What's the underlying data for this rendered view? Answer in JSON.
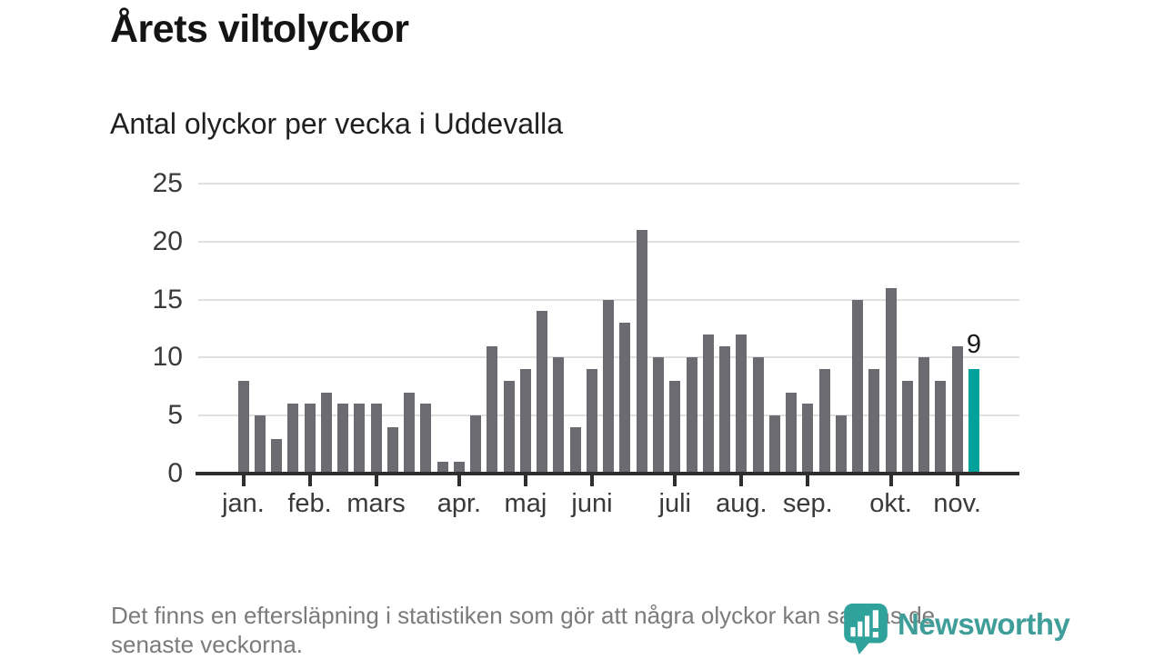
{
  "header": {
    "title": "Årets viltolyckor",
    "subtitle": "Antal olyckor per vecka i Uddevalla"
  },
  "chart_data": {
    "type": "bar",
    "title": "Årets viltolyckor",
    "subtitle": "Antal olyckor per vecka i Uddevalla",
    "values": [
      8,
      5,
      3,
      6,
      6,
      7,
      6,
      6,
      6,
      4,
      7,
      6,
      1,
      1,
      5,
      11,
      8,
      9,
      14,
      10,
      4,
      9,
      15,
      13,
      21,
      10,
      8,
      10,
      12,
      11,
      12,
      10,
      5,
      7,
      6,
      9,
      5,
      15,
      9,
      16,
      8,
      10,
      8,
      11,
      9
    ],
    "month_ticks": [
      {
        "label": "jan.",
        "bar_index": 0
      },
      {
        "label": "feb.",
        "bar_index": 4
      },
      {
        "label": "mars",
        "bar_index": 8
      },
      {
        "label": "apr.",
        "bar_index": 13
      },
      {
        "label": "maj",
        "bar_index": 17
      },
      {
        "label": "juni",
        "bar_index": 21
      },
      {
        "label": "juli",
        "bar_index": 26
      },
      {
        "label": "aug.",
        "bar_index": 30
      },
      {
        "label": "sep.",
        "bar_index": 34
      },
      {
        "label": "okt.",
        "bar_index": 39
      },
      {
        "label": "nov.",
        "bar_index": 43
      }
    ],
    "yticks": [
      0,
      5,
      10,
      15,
      20,
      25
    ],
    "ylim": [
      0,
      25
    ],
    "grid": true,
    "legend": false,
    "bar_color": "#6b6b71",
    "highlight": {
      "bar_index": 44,
      "value": 9,
      "label": "9",
      "color": "#00a29b"
    }
  },
  "footer": {
    "note_lines": [
      "Det finns en eftersläpning i statistiken som gör att några olyckor kan saknas de",
      "senaste veckorna."
    ],
    "brand": "Newsworthy"
  },
  "colors": {
    "background": "#ffffff",
    "bar": "#6b6b71",
    "highlight": "#00a29b",
    "axis": "#2e2e2e",
    "grid": "#e0e0e0",
    "text_dark": "#141414",
    "text_axis": "#3a3a3a",
    "text_footnote": "#7b7b7b",
    "brand_teal": "#3f9e99"
  }
}
